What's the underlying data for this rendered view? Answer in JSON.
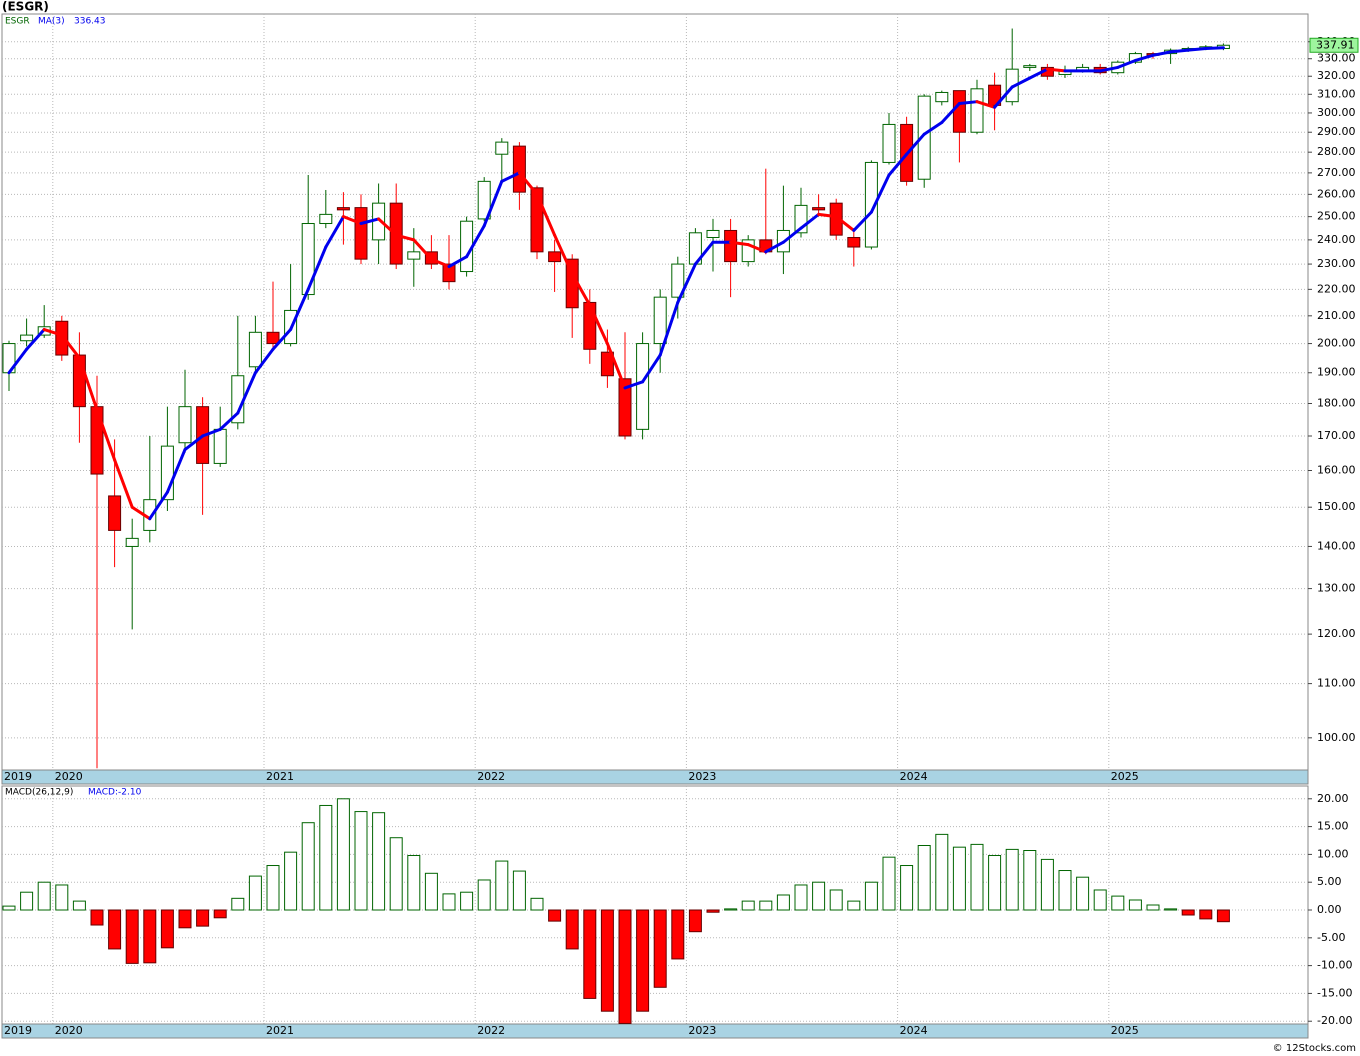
{
  "footer": "© 12Stocks.com",
  "chart_data": [
    {
      "type": "candlestick",
      "title": "(ESGR)",
      "symbol": "ESGR",
      "last_price": 337.91,
      "categories": [
        "2019",
        null,
        null,
        "2020",
        null,
        null,
        null,
        null,
        null,
        null,
        null,
        null,
        null,
        null,
        null,
        "2021",
        null,
        null,
        null,
        null,
        null,
        null,
        null,
        null,
        null,
        null,
        null,
        "2022",
        null,
        null,
        null,
        null,
        null,
        null,
        null,
        null,
        null,
        null,
        null,
        "2023",
        null,
        null,
        null,
        null,
        null,
        null,
        null,
        null,
        null,
        null,
        null,
        "2024",
        null,
        null,
        null,
        null,
        null,
        null,
        null,
        null,
        null,
        null,
        null,
        "2025",
        null,
        null,
        null,
        null,
        null,
        null
      ],
      "open": [
        190,
        201,
        203,
        208,
        196,
        179,
        153,
        140,
        144,
        152,
        168,
        179,
        162,
        174,
        192,
        204,
        200,
        218,
        247,
        254,
        254,
        240,
        256,
        232,
        235,
        230,
        227,
        249,
        279,
        283,
        263,
        235,
        232,
        215,
        197,
        188,
        172,
        200,
        217,
        230,
        241,
        244,
        231,
        240,
        235,
        243,
        254,
        256,
        241,
        237,
        275,
        294,
        267,
        306,
        312,
        290,
        315,
        306,
        325,
        325,
        321,
        323,
        325,
        322,
        328,
        333,
        333,
        335,
        336,
        336
      ],
      "high": [
        201,
        209,
        214,
        210,
        204,
        189,
        169,
        147,
        170,
        179,
        191,
        182,
        179,
        210,
        210,
        223,
        230,
        269,
        262,
        261,
        260,
        265,
        265,
        245,
        242,
        242,
        250,
        268,
        287,
        285,
        264,
        240,
        234,
        220,
        205,
        204,
        204,
        220,
        233,
        245,
        249,
        249,
        242,
        272,
        264,
        263,
        260,
        258,
        245,
        276,
        300,
        298,
        310,
        312,
        312,
        318,
        322,
        348,
        327,
        327,
        326,
        327,
        327,
        329,
        334,
        334,
        336,
        337,
        338,
        339
      ],
      "low": [
        184,
        199,
        202,
        194,
        168,
        94.8,
        135,
        121,
        141,
        149,
        165,
        148,
        161,
        172,
        190,
        198,
        199,
        216,
        245,
        238,
        230,
        230,
        228,
        221,
        228,
        220,
        225,
        248,
        266,
        253,
        232,
        219,
        202,
        193,
        185,
        169,
        169,
        190,
        209,
        229,
        227,
        217,
        229,
        234,
        226,
        241,
        250,
        240,
        229,
        236,
        274,
        264,
        263,
        304,
        275,
        289,
        291,
        304,
        323,
        318,
        319,
        322,
        321,
        321,
        327,
        330,
        327,
        334,
        335,
        335
      ],
      "close": [
        200,
        203,
        206,
        196,
        179,
        159,
        144,
        142,
        152,
        167,
        179,
        162,
        172,
        189,
        204,
        200,
        212,
        247,
        251,
        253,
        232,
        256,
        230,
        235,
        230,
        223,
        248,
        266,
        285,
        261,
        235,
        231,
        213,
        198,
        189,
        170,
        200,
        217,
        230,
        243,
        244,
        231,
        240,
        235,
        244,
        255,
        253,
        242,
        237,
        275,
        294,
        266,
        309,
        311,
        290,
        313,
        304,
        324,
        326,
        320,
        323,
        325,
        322,
        328,
        333,
        332,
        335,
        336,
        337,
        337.91
      ],
      "up_color": "#006400",
      "down_color": "#ff0000",
      "ma": {
        "name": "MA(3)",
        "last": 336.43,
        "up_color": "#0000ee",
        "down_color": "#ff0000",
        "values": [
          190,
          198,
          205,
          203,
          195,
          178,
          163,
          150,
          147,
          154,
          166,
          170,
          172,
          177,
          190,
          198,
          205,
          220,
          237,
          250,
          247,
          249,
          242,
          240,
          232,
          229,
          233,
          246,
          266,
          270,
          260,
          242,
          226,
          214,
          200,
          185,
          187,
          196,
          215,
          230,
          239,
          239,
          238,
          235,
          239,
          245,
          251,
          250,
          244,
          252,
          269,
          279,
          289,
          295,
          305,
          306,
          303,
          314,
          319,
          324,
          323,
          323,
          323,
          325,
          329,
          332,
          334,
          335,
          336,
          336.43
        ]
      },
      "ylim": [
        94.5,
        357
      ],
      "log_scale": true,
      "grid": true,
      "yticks": [
        {
          "value": 100,
          "label": "100.00"
        },
        {
          "value": 110,
          "label": "110.00"
        },
        {
          "value": 120,
          "label": "120.00"
        },
        {
          "value": 130,
          "label": "130.00"
        },
        {
          "value": 140,
          "label": "140.00"
        },
        {
          "value": 150,
          "label": "150.00"
        },
        {
          "value": 160,
          "label": "160.00"
        },
        {
          "value": 170,
          "label": "170.00"
        },
        {
          "value": 180,
          "label": "180.00"
        },
        {
          "value": 190,
          "label": "190.00"
        },
        {
          "value": 200,
          "label": "200.00"
        },
        {
          "value": 210,
          "label": "210.00"
        },
        {
          "value": 220,
          "label": "220.00"
        },
        {
          "value": 230,
          "label": "230.00"
        },
        {
          "value": 240,
          "label": "240.00"
        },
        {
          "value": 250,
          "label": "250.00"
        },
        {
          "value": 260,
          "label": "260.00"
        },
        {
          "value": 270,
          "label": "270.00"
        },
        {
          "value": 280,
          "label": "280.00"
        },
        {
          "value": 290,
          "label": "290.00"
        },
        {
          "value": 300,
          "label": "300.00"
        },
        {
          "value": 310,
          "label": "310.00"
        },
        {
          "value": 320,
          "label": "320.00"
        },
        {
          "value": 330,
          "label": "330.00"
        },
        {
          "value": 340,
          "label": "340.00"
        }
      ]
    },
    {
      "type": "bar",
      "title": "MACD(26,12,9)",
      "value_text": "MACD:-2.10",
      "categories": [
        "2019",
        null,
        null,
        "2020",
        null,
        null,
        null,
        null,
        null,
        null,
        null,
        null,
        null,
        null,
        null,
        "2021",
        null,
        null,
        null,
        null,
        null,
        null,
        null,
        null,
        null,
        null,
        null,
        "2022",
        null,
        null,
        null,
        null,
        null,
        null,
        null,
        null,
        null,
        null,
        null,
        "2023",
        null,
        null,
        null,
        null,
        null,
        null,
        null,
        null,
        null,
        null,
        null,
        "2024",
        null,
        null,
        null,
        null,
        null,
        null,
        null,
        null,
        null,
        null,
        null,
        "2025",
        null,
        null,
        null,
        null,
        null,
        null
      ],
      "values": [
        0.7,
        3.2,
        5.0,
        4.5,
        1.6,
        -2.7,
        -7.0,
        -9.6,
        -9.5,
        -6.8,
        -3.2,
        -2.9,
        -1.4,
        2.1,
        6.1,
        8.0,
        10.4,
        15.7,
        18.8,
        20.0,
        17.7,
        17.5,
        13.0,
        9.8,
        6.6,
        2.9,
        3.2,
        5.4,
        8.8,
        7.0,
        2.1,
        -2.0,
        -7.0,
        -15.9,
        -18.2,
        -20.4,
        -18.2,
        -13.9,
        -8.8,
        -3.9,
        -0.4,
        0.2,
        1.6,
        1.6,
        2.7,
        4.5,
        5.0,
        3.6,
        1.6,
        5.0,
        9.5,
        8.0,
        11.6,
        13.6,
        11.3,
        11.8,
        9.8,
        10.9,
        10.7,
        9.1,
        7.1,
        5.9,
        3.6,
        2.5,
        1.8,
        0.9,
        0.2,
        -0.9,
        -1.6,
        -2.1
      ],
      "up_color": "#006400",
      "down_color": "#ff0000",
      "ylim": [
        -20.5,
        22.3
      ],
      "grid": true,
      "yticks": [
        {
          "value": -20,
          "label": "-20.00"
        },
        {
          "value": -15,
          "label": "-15.00"
        },
        {
          "value": -10,
          "label": "-10.00"
        },
        {
          "value": -5,
          "label": "-5.00"
        },
        {
          "value": 0,
          "label": "0.00"
        },
        {
          "value": 5,
          "label": "5.00"
        },
        {
          "value": 10,
          "label": "10.00"
        },
        {
          "value": 15,
          "label": "15.00"
        },
        {
          "value": 20,
          "label": "20.00"
        }
      ]
    }
  ]
}
